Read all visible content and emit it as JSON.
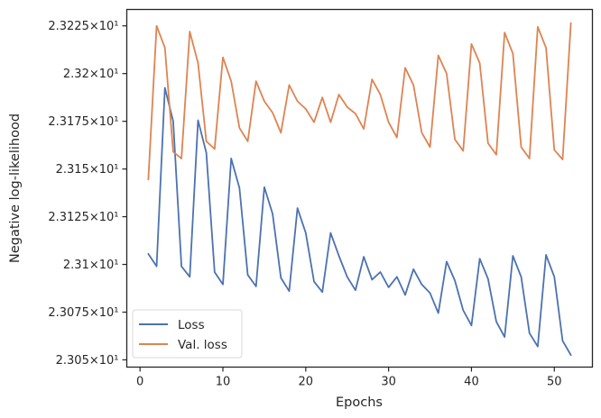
{
  "chart_data": {
    "type": "line",
    "xlabel": "Epochs",
    "ylabel": "Negative log-likelihood",
    "xlim": [
      -1.6,
      54.6
    ],
    "ylim": [
      23.0462,
      23.2336
    ],
    "xticks": [
      0,
      10,
      20,
      30,
      40,
      50
    ],
    "xtick_labels": [
      "0",
      "10",
      "20",
      "30",
      "40",
      "50"
    ],
    "yticks": [
      23.05,
      23.075,
      23.1,
      23.125,
      23.15,
      23.175,
      23.2,
      23.225
    ],
    "ytick_labels": [
      "2.305×10¹",
      "2.3075×10¹",
      "2.31×10¹",
      "2.3125×10¹",
      "2.315×10¹",
      "2.3175×10¹",
      "2.32×10¹",
      "2.3225×10¹"
    ],
    "x": [
      1,
      2,
      3,
      4,
      5,
      6,
      7,
      8,
      9,
      10,
      11,
      12,
      13,
      14,
      15,
      16,
      17,
      18,
      19,
      20,
      21,
      22,
      23,
      24,
      25,
      26,
      27,
      28,
      29,
      30,
      31,
      32,
      33,
      34,
      35,
      36,
      37,
      38,
      39,
      40,
      41,
      42,
      43,
      44,
      45,
      46,
      47,
      48,
      49,
      50,
      51,
      52
    ],
    "series": [
      {
        "name": "Loss",
        "color": "#4c72b0",
        "values": [
          23.1055,
          23.099,
          23.1925,
          23.175,
          23.099,
          23.0935,
          23.1755,
          23.1585,
          23.096,
          23.0895,
          23.1555,
          23.14,
          23.0945,
          23.0885,
          23.1405,
          23.1265,
          23.093,
          23.086,
          23.1295,
          23.1165,
          23.091,
          23.0855,
          23.1165,
          23.1045,
          23.0935,
          23.0865,
          23.104,
          23.092,
          23.096,
          23.088,
          23.0935,
          23.084,
          23.0975,
          23.0895,
          23.085,
          23.0745,
          23.1015,
          23.0915,
          23.076,
          23.068,
          23.103,
          23.0925,
          23.07,
          23.062,
          23.1045,
          23.0935,
          23.064,
          23.057,
          23.105,
          23.0935,
          23.06,
          23.0525
        ]
      },
      {
        "name": "Val. loss",
        "color": "#dd8452",
        "values": [
          23.1445,
          23.225,
          23.2135,
          23.159,
          23.1555,
          23.222,
          23.2055,
          23.1645,
          23.1605,
          23.2085,
          23.196,
          23.1715,
          23.1645,
          23.196,
          23.1855,
          23.1795,
          23.169,
          23.194,
          23.1855,
          23.1815,
          23.1745,
          23.1875,
          23.1745,
          23.189,
          23.1825,
          23.179,
          23.171,
          23.197,
          23.189,
          23.1745,
          23.1665,
          23.203,
          23.194,
          23.169,
          23.1615,
          23.2095,
          23.2,
          23.1655,
          23.1595,
          23.2155,
          23.2055,
          23.1635,
          23.1575,
          23.2215,
          23.2105,
          23.1615,
          23.1555,
          23.2245,
          23.2135,
          23.16,
          23.155,
          23.2265
        ]
      }
    ],
    "legend": {
      "placement": "lower-left",
      "entries": [
        "Loss",
        "Val. loss"
      ]
    },
    "grid": false
  }
}
